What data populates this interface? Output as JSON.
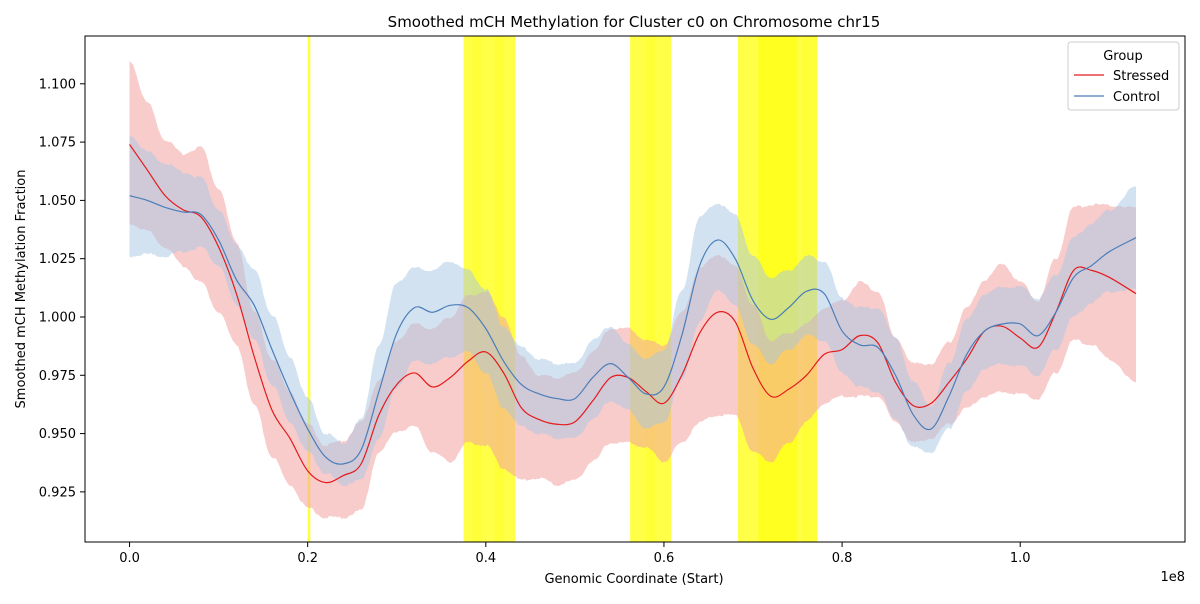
{
  "chart_data": {
    "type": "line",
    "title": "Smoothed mCH Methylation for Cluster c0 on Chromosome chr15",
    "xlabel": "Genomic Coordinate (Start)",
    "ylabel": "Smoothed mCH Methylation Fraction",
    "x_offset_label": "1e8",
    "xlim": [
      -0.05,
      1.185
    ],
    "ylim": [
      0.9035,
      1.1205
    ],
    "x_ticks": [
      0.0,
      0.2,
      0.4,
      0.6,
      0.8,
      1.0
    ],
    "x_tick_labels": [
      "0.0",
      "0.2",
      "0.4",
      "0.6",
      "0.8",
      "1.0"
    ],
    "y_ticks": [
      0.925,
      0.95,
      0.975,
      1.0,
      1.025,
      1.05,
      1.075,
      1.1
    ],
    "y_tick_labels": [
      "0.925",
      "0.950",
      "0.975",
      "1.000",
      "1.025",
      "1.050",
      "1.075",
      "1.100"
    ],
    "legend": {
      "title": "Group",
      "position": "top-right"
    },
    "highlight_regions": [
      {
        "start": 0.2,
        "end": 0.203,
        "opacity": 0.75
      },
      {
        "start": 0.375,
        "end": 0.433,
        "opacity": 0.72
      },
      {
        "start": 0.385,
        "end": 0.395,
        "opacity": 0.2
      },
      {
        "start": 0.41,
        "end": 0.42,
        "opacity": 0.2
      },
      {
        "start": 0.562,
        "end": 0.608,
        "opacity": 0.72
      },
      {
        "start": 0.58,
        "end": 0.59,
        "opacity": 0.2
      },
      {
        "start": 0.683,
        "end": 0.772,
        "opacity": 0.72
      },
      {
        "start": 0.706,
        "end": 0.75,
        "opacity": 0.55
      },
      {
        "start": 0.755,
        "end": 0.772,
        "opacity": 0.2
      }
    ],
    "highlight_color": "#ffff00",
    "series": [
      {
        "name": "Stressed",
        "color": "#e41a1c",
        "band_color": "#f4a3a3",
        "x": [
          0.0,
          0.02,
          0.04,
          0.06,
          0.08,
          0.1,
          0.12,
          0.14,
          0.16,
          0.18,
          0.2,
          0.22,
          0.24,
          0.26,
          0.28,
          0.3,
          0.32,
          0.34,
          0.36,
          0.38,
          0.4,
          0.42,
          0.44,
          0.46,
          0.48,
          0.5,
          0.52,
          0.54,
          0.56,
          0.58,
          0.6,
          0.62,
          0.64,
          0.66,
          0.68,
          0.7,
          0.72,
          0.74,
          0.76,
          0.78,
          0.8,
          0.82,
          0.84,
          0.86,
          0.88,
          0.9,
          0.92,
          0.94,
          0.96,
          0.98,
          1.0,
          1.02,
          1.04,
          1.06,
          1.08,
          1.1,
          1.13
        ],
        "values": [
          1.074,
          1.063,
          1.052,
          1.046,
          1.043,
          1.03,
          1.01,
          0.983,
          0.96,
          0.948,
          0.934,
          0.929,
          0.932,
          0.937,
          0.958,
          0.971,
          0.976,
          0.97,
          0.974,
          0.981,
          0.985,
          0.976,
          0.961,
          0.956,
          0.954,
          0.955,
          0.964,
          0.974,
          0.974,
          0.968,
          0.963,
          0.975,
          0.993,
          1.002,
          0.998,
          0.978,
          0.966,
          0.969,
          0.975,
          0.984,
          0.986,
          0.992,
          0.989,
          0.972,
          0.962,
          0.963,
          0.972,
          0.982,
          0.994,
          0.996,
          0.991,
          0.987,
          1.002,
          1.02,
          1.02,
          1.017,
          1.01
        ],
        "lower": [
          1.04,
          1.037,
          1.03,
          1.022,
          1.015,
          1.002,
          0.988,
          0.962,
          0.94,
          0.928,
          0.918,
          0.914,
          0.914,
          0.917,
          0.942,
          0.951,
          0.953,
          0.942,
          0.938,
          0.946,
          0.945,
          0.935,
          0.93,
          0.931,
          0.928,
          0.93,
          0.938,
          0.946,
          0.946,
          0.944,
          0.938,
          0.946,
          0.955,
          0.958,
          0.958,
          0.942,
          0.938,
          0.946,
          0.955,
          0.963,
          0.966,
          0.966,
          0.966,
          0.955,
          0.946,
          0.948,
          0.954,
          0.961,
          0.966,
          0.968,
          0.967,
          0.965,
          0.976,
          0.99,
          0.988,
          0.982,
          0.972
        ],
        "upper": [
          1.11,
          1.092,
          1.076,
          1.07,
          1.073,
          1.055,
          1.032,
          1.002,
          0.982,
          0.968,
          0.954,
          0.945,
          0.947,
          0.955,
          0.973,
          0.99,
          0.997,
          0.995,
          1.0,
          1.009,
          1.011,
          1.0,
          0.983,
          0.975,
          0.974,
          0.976,
          0.985,
          0.995,
          0.995,
          0.99,
          0.988,
          1.002,
          1.021,
          1.027,
          1.022,
          1.005,
          0.99,
          0.993,
          0.997,
          1.004,
          1.007,
          1.015,
          1.011,
          0.991,
          0.98,
          0.98,
          0.989,
          1.004,
          1.016,
          1.023,
          1.015,
          1.007,
          1.025,
          1.047,
          1.048,
          1.048,
          1.047
        ]
      },
      {
        "name": "Control",
        "color": "#4a7eb9",
        "band_color": "#a8c6e4",
        "x": [
          0.0,
          0.02,
          0.04,
          0.06,
          0.08,
          0.1,
          0.12,
          0.14,
          0.16,
          0.18,
          0.2,
          0.22,
          0.24,
          0.26,
          0.28,
          0.3,
          0.32,
          0.34,
          0.36,
          0.38,
          0.4,
          0.42,
          0.44,
          0.46,
          0.48,
          0.5,
          0.52,
          0.54,
          0.56,
          0.58,
          0.6,
          0.62,
          0.64,
          0.66,
          0.68,
          0.7,
          0.72,
          0.74,
          0.76,
          0.78,
          0.8,
          0.82,
          0.84,
          0.86,
          0.88,
          0.9,
          0.92,
          0.94,
          0.96,
          0.98,
          1.0,
          1.02,
          1.04,
          1.06,
          1.08,
          1.1,
          1.13
        ],
        "values": [
          1.052,
          1.05,
          1.047,
          1.045,
          1.044,
          1.033,
          1.016,
          1.005,
          0.986,
          0.968,
          0.952,
          0.94,
          0.937,
          0.943,
          0.968,
          0.993,
          1.004,
          1.002,
          1.005,
          1.004,
          0.995,
          0.981,
          0.971,
          0.967,
          0.965,
          0.965,
          0.974,
          0.98,
          0.974,
          0.967,
          0.97,
          0.992,
          1.022,
          1.033,
          1.025,
          1.007,
          0.999,
          1.004,
          1.011,
          1.01,
          0.994,
          0.988,
          0.987,
          0.975,
          0.958,
          0.952,
          0.966,
          0.984,
          0.994,
          0.997,
          0.997,
          0.992,
          1.002,
          1.017,
          1.022,
          1.028,
          1.034
        ],
        "lower": [
          1.026,
          1.027,
          1.026,
          1.028,
          1.03,
          1.022,
          1.005,
          0.99,
          0.971,
          0.955,
          0.942,
          0.933,
          0.928,
          0.93,
          0.948,
          0.97,
          0.981,
          0.98,
          0.983,
          0.985,
          0.976,
          0.961,
          0.953,
          0.95,
          0.948,
          0.948,
          0.956,
          0.964,
          0.96,
          0.952,
          0.955,
          0.973,
          0.998,
          1.012,
          1.005,
          0.988,
          0.98,
          0.986,
          0.992,
          0.99,
          0.976,
          0.97,
          0.968,
          0.956,
          0.944,
          0.942,
          0.952,
          0.968,
          0.978,
          0.98,
          0.979,
          0.975,
          0.986,
          1.0,
          1.006,
          1.011,
          1.012
        ],
        "upper": [
          1.078,
          1.071,
          1.066,
          1.062,
          1.06,
          1.046,
          1.031,
          1.02,
          1.001,
          0.983,
          0.965,
          0.95,
          0.946,
          0.956,
          0.988,
          1.015,
          1.021,
          1.02,
          1.024,
          1.02,
          1.012,
          0.996,
          0.987,
          0.982,
          0.98,
          0.98,
          0.99,
          0.996,
          0.988,
          0.982,
          0.986,
          1.011,
          1.043,
          1.049,
          1.044,
          1.026,
          1.017,
          1.02,
          1.026,
          1.024,
          1.008,
          1.004,
          1.004,
          0.991,
          0.972,
          0.962,
          0.98,
          0.999,
          1.01,
          1.013,
          1.013,
          1.008,
          1.018,
          1.034,
          1.04,
          1.046,
          1.056
        ]
      }
    ]
  }
}
